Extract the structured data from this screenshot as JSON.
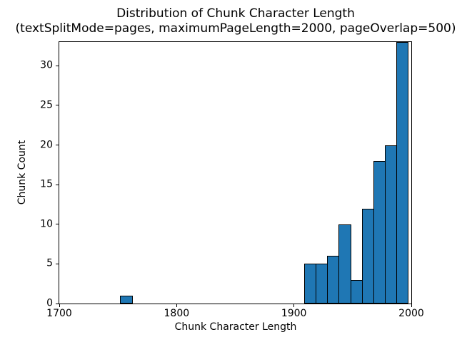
{
  "title": {
    "line1": "Distribution of Chunk Character Length",
    "line2": "(textSplitMode=pages, maximumPageLength=2000, pageOverlap=500)"
  },
  "chart_data": {
    "type": "bar",
    "subtype": "histogram",
    "title": "Distribution of Chunk Character Length\n(textSplitMode=pages, maximumPageLength=2000, pageOverlap=500)",
    "xlabel": "Chunk Character Length",
    "ylabel": "Chunk Count",
    "xlim": [
      1700,
      2000
    ],
    "ylim": [
      0,
      33
    ],
    "xticks": [
      1700,
      1800,
      1900,
      2000
    ],
    "yticks": [
      0,
      5,
      10,
      15,
      20,
      25,
      30
    ],
    "grid": false,
    "legend": false,
    "bar_color": "#1f77b4",
    "bar_edge_color": "#000000",
    "bin_edges": [
      1752.0,
      1761.8,
      1771.6,
      1781.4,
      1791.2,
      1801.0,
      1810.8,
      1820.6,
      1830.4,
      1840.2,
      1850.0,
      1859.8,
      1869.6,
      1879.4,
      1889.2,
      1899.0,
      1908.8,
      1918.6,
      1928.4,
      1938.2,
      1948.0,
      1957.8,
      1967.6,
      1977.4,
      1987.2,
      1997.0
    ],
    "counts": [
      1,
      0,
      0,
      0,
      0,
      0,
      0,
      0,
      0,
      0,
      0,
      0,
      0,
      0,
      0,
      0,
      5,
      5,
      6,
      10,
      3,
      12,
      18,
      20,
      33
    ]
  }
}
